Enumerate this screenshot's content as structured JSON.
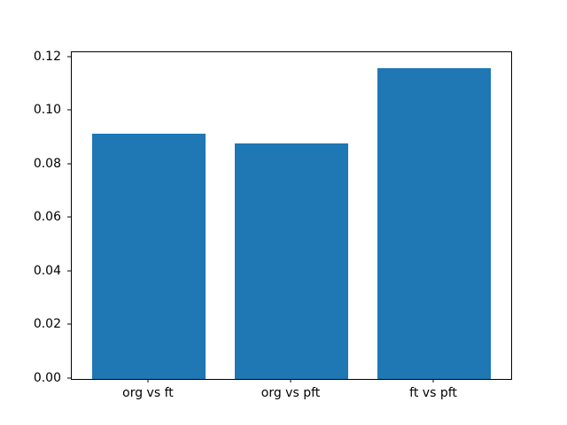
{
  "chart_data": {
    "type": "bar",
    "categories": [
      "org vs ft",
      "org vs pft",
      "ft vs pft"
    ],
    "values": [
      0.0914,
      0.0878,
      0.1161
    ],
    "title": "",
    "xlabel": "",
    "ylabel": "",
    "ylim": [
      0,
      0.1219
    ],
    "yticks": [
      0.0,
      0.02,
      0.04,
      0.06,
      0.08,
      0.1,
      0.12
    ],
    "ytick_labels": [
      "0.00",
      "0.02",
      "0.04",
      "0.06",
      "0.08",
      "0.10",
      "0.12"
    ],
    "bar_color": "#1f77b4",
    "axis_color": "#000000",
    "background_color": "#ffffff",
    "grid": false,
    "legend": null
  }
}
